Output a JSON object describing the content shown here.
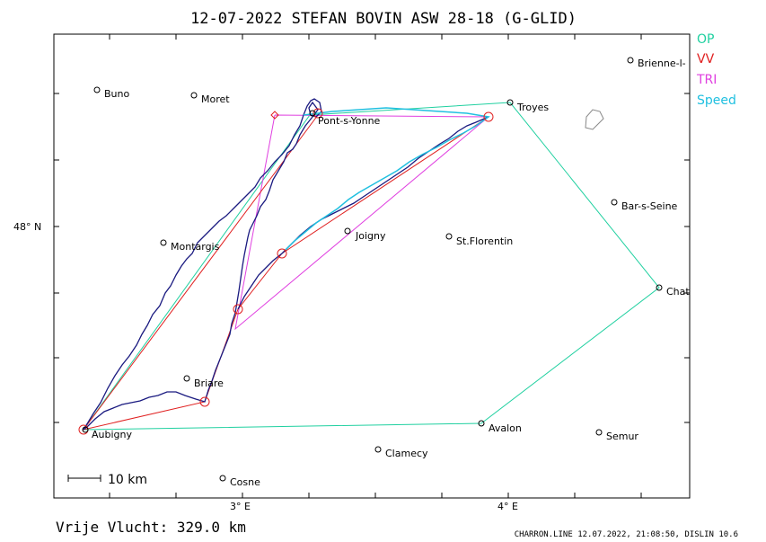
{
  "title": "12-07-2022   STEFAN BOVIN   ASW 28-18 (G-GLID)",
  "legend": [
    {
      "label": "OP",
      "color": "#20d0a0"
    },
    {
      "label": "VV",
      "color": "#e02020"
    },
    {
      "label": "TRI",
      "color": "#e040e0"
    },
    {
      "label": "Speed",
      "color": "#20c0e0"
    }
  ],
  "axis": {
    "lat_label": "48° N",
    "lon_labels": [
      "3° E",
      "4° E"
    ]
  },
  "scale_label": "10 km",
  "distance_text": "Vrije Vlucht:  329.0 km",
  "footer": "CHARRON.LINE 12.07.2022, 21:08:50, DISLIN 10.6",
  "towns": [
    {
      "name": "Buno"
    },
    {
      "name": "Moret"
    },
    {
      "name": "Brienne-l-"
    },
    {
      "name": "Troyes"
    },
    {
      "name": "Pont-s-Yonne"
    },
    {
      "name": "Bar-s-Seine"
    },
    {
      "name": "Montargis"
    },
    {
      "name": "Joigny"
    },
    {
      "name": "St.Florentin"
    },
    {
      "name": "Chat"
    },
    {
      "name": "Briare"
    },
    {
      "name": "Aubigny"
    },
    {
      "name": "Avalon"
    },
    {
      "name": "Semur"
    },
    {
      "name": "Clamecy"
    },
    {
      "name": "Cosne"
    }
  ]
}
